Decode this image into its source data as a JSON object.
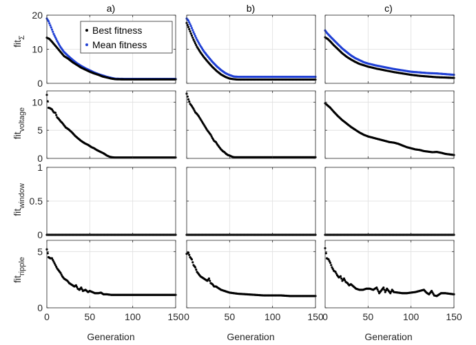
{
  "chart_data": {
    "type": "scatter",
    "layout": "4x3 grid",
    "columns": [
      "a)",
      "b)",
      "c)"
    ],
    "xlabel": "Generation",
    "xlim": [
      0,
      150
    ],
    "xticks": [
      0,
      50,
      100,
      150
    ],
    "grid": true,
    "legend": {
      "position": "top-right",
      "entries": [
        {
          "label": "Best fitness",
          "color": "#000000"
        },
        {
          "label": "Mean fitness",
          "color": "#1f3fd4"
        }
      ]
    },
    "rows": [
      {
        "ylabel_base": "fit",
        "ylabel_sub": "Σ",
        "ylim": [
          0,
          20
        ],
        "yticks": [
          0,
          10,
          20
        ],
        "ytick_labels": [
          "0",
          "10",
          "20"
        ]
      },
      {
        "ylabel_base": "fit",
        "ylabel_sub": "voltage",
        "ylim": [
          0,
          12
        ],
        "yticks": [
          0,
          5,
          10
        ],
        "ytick_labels": [
          "0",
          "5",
          "10"
        ]
      },
      {
        "ylabel_base": "fit",
        "ylabel_sub": "window",
        "ylim": [
          0,
          1
        ],
        "yticks": [
          0,
          0.5,
          1
        ],
        "ytick_labels": [
          "0",
          "0.5",
          "1"
        ]
      },
      {
        "ylabel_base": "fit",
        "ylabel_sub": "ripple",
        "ylim": [
          0,
          6
        ],
        "yticks": [
          0,
          5
        ],
        "ytick_labels": [
          "0",
          "5"
        ]
      }
    ],
    "xtick_labels": [
      [
        "0",
        "50",
        "100",
        "150"
      ],
      [
        "0",
        "50",
        "100",
        "150"
      ],
      [
        "0",
        "50",
        "100",
        "150"
      ]
    ],
    "series": [
      [
        {
          "name": "Best fitness",
          "x": [
            0,
            3,
            6,
            10,
            15,
            20,
            25,
            30,
            35,
            40,
            45,
            50,
            55,
            60,
            65,
            70,
            75,
            80,
            90,
            100,
            110,
            120,
            130,
            140,
            150
          ],
          "y": [
            13.4,
            13,
            12.2,
            11,
            9.5,
            8,
            7.2,
            6.2,
            5.4,
            4.6,
            4,
            3.4,
            2.9,
            2.5,
            2,
            1.7,
            1.4,
            1.2,
            1.15,
            1.15,
            1.15,
            1.15,
            1.15,
            1.15,
            1.15
          ]
        },
        {
          "name": "Mean fitness",
          "x": [
            0,
            2,
            5,
            8,
            12,
            16,
            20,
            25,
            30,
            35,
            40,
            45,
            50,
            55,
            60,
            65,
            70,
            75,
            80,
            90,
            100,
            110,
            120,
            130,
            140,
            150
          ],
          "y": [
            19,
            18.2,
            16.4,
            14.5,
            12.4,
            10.6,
            9.2,
            8,
            6.9,
            5.9,
            5.1,
            4.4,
            3.8,
            3.2,
            2.7,
            2.3,
            1.9,
            1.6,
            1.35,
            1.3,
            1.3,
            1.3,
            1.3,
            1.3,
            1.3,
            1.3
          ]
        },
        {
          "name": "",
          "x": [
            0,
            2,
            4,
            6,
            8,
            10,
            12,
            14,
            16,
            18,
            20,
            22,
            25,
            28,
            30,
            33,
            36,
            40,
            44,
            48,
            52,
            55,
            58,
            62,
            66,
            70,
            73,
            76,
            79,
            82,
            90,
            100,
            110,
            120,
            130,
            140,
            150
          ],
          "y": [
            11.3,
            9,
            8.9,
            8.7,
            8.2,
            8.1,
            7.3,
            7,
            6.6,
            6.3,
            5.9,
            5.5,
            5.2,
            4.8,
            4.5,
            4,
            3.6,
            3.1,
            2.7,
            2.4,
            2,
            1.8,
            1.5,
            1.2,
            0.9,
            0.5,
            0.3,
            0.2,
            0.15,
            0.15,
            0.15,
            0.15,
            0.15,
            0.15,
            0.15,
            0.15,
            0.15
          ]
        },
        {
          "name": "",
          "x": [
            0,
            150
          ],
          "y": [
            0,
            0
          ]
        },
        {
          "name": "",
          "x": [
            0,
            2,
            4,
            6,
            8,
            10,
            12,
            14,
            16,
            18,
            20,
            22,
            24,
            26,
            28,
            30,
            32,
            34,
            36,
            38,
            40,
            42,
            45,
            48,
            50,
            53,
            56,
            60,
            63,
            66,
            70,
            75,
            80,
            90,
            100,
            110,
            120,
            130,
            140,
            150
          ],
          "y": [
            5.2,
            4.5,
            4.4,
            4.4,
            4.1,
            3.8,
            3.5,
            3.3,
            3.1,
            2.8,
            2.6,
            2.5,
            2.4,
            2.2,
            2.1,
            2,
            1.9,
            2,
            1.7,
            1.6,
            1.8,
            1.5,
            1.6,
            1.4,
            1.5,
            1.4,
            1.3,
            1.3,
            1.35,
            1.2,
            1.2,
            1.15,
            1.15,
            1.15,
            1.15,
            1.15,
            1.15,
            1.15,
            1.15,
            1.15
          ]
        }
      ],
      [
        {
          "name": "Best fitness",
          "x": [
            0,
            2,
            5,
            8,
            12,
            16,
            20,
            25,
            30,
            35,
            40,
            45,
            50,
            55,
            60,
            70,
            80,
            90,
            100,
            110,
            120,
            130,
            140,
            150
          ],
          "y": [
            17.7,
            16.5,
            14.6,
            12.8,
            10.7,
            9.1,
            7.7,
            6.2,
            4.8,
            3.6,
            2.6,
            1.9,
            1.4,
            1.2,
            1.1,
            1.1,
            1.1,
            1.1,
            1.1,
            1.1,
            1.1,
            1.1,
            1.1,
            1.1
          ]
        },
        {
          "name": "Mean fitness",
          "x": [
            0,
            2,
            5,
            8,
            12,
            16,
            20,
            25,
            30,
            35,
            40,
            45,
            50,
            55,
            60,
            70,
            80,
            90,
            100,
            110,
            120,
            130,
            140,
            150
          ],
          "y": [
            19,
            18.4,
            16.8,
            15,
            12.8,
            11,
            9.4,
            7.8,
            6.3,
            5,
            3.9,
            3,
            2.4,
            2,
            1.9,
            1.9,
            1.9,
            1.9,
            1.9,
            1.9,
            1.9,
            1.9,
            1.9,
            1.9
          ]
        },
        {
          "name": "",
          "x": [
            0,
            2,
            4,
            6,
            8,
            10,
            12,
            14,
            16,
            18,
            20,
            22,
            24,
            26,
            28,
            30,
            32,
            34,
            36,
            38,
            40,
            42,
            44,
            46,
            48,
            50,
            52,
            54,
            56,
            60,
            70,
            80,
            90,
            100,
            110,
            120,
            130,
            140,
            150
          ],
          "y": [
            11.5,
            10.5,
            9.7,
            9.3,
            8.8,
            8.2,
            7.9,
            7.5,
            7,
            6.5,
            6,
            5.5,
            5,
            4.6,
            4.2,
            3.6,
            3.1,
            2.9,
            2.4,
            2,
            1.6,
            1.3,
            1.1,
            0.8,
            0.6,
            0.5,
            0.35,
            0.25,
            0.2,
            0.2,
            0.2,
            0.2,
            0.2,
            0.2,
            0.2,
            0.2,
            0.2,
            0.2,
            0.2
          ]
        },
        {
          "name": "",
          "x": [
            0,
            150
          ],
          "y": [
            0,
            0
          ]
        },
        {
          "name": "",
          "x": [
            0,
            2,
            4,
            6,
            8,
            10,
            12,
            14,
            16,
            18,
            20,
            22,
            24,
            26,
            28,
            30,
            32,
            34,
            36,
            38,
            40,
            42,
            44,
            46,
            48,
            50,
            55,
            60,
            70,
            80,
            90,
            100,
            110,
            120,
            130,
            140,
            150
          ],
          "y": [
            4.8,
            4.9,
            4.5,
            4.3,
            3.8,
            3.6,
            3.2,
            3,
            2.8,
            2.7,
            2.6,
            2.5,
            2.4,
            2.6,
            2.2,
            2.1,
            1.9,
            1.9,
            1.8,
            1.7,
            1.6,
            1.55,
            1.5,
            1.45,
            1.4,
            1.35,
            1.3,
            1.25,
            1.2,
            1.15,
            1.1,
            1.1,
            1.1,
            1.05,
            1.05,
            1.05,
            1.05
          ]
        }
      ],
      [
        {
          "name": "Best fitness",
          "x": [
            0,
            3,
            6,
            10,
            15,
            20,
            25,
            30,
            35,
            40,
            45,
            50,
            55,
            60,
            70,
            80,
            90,
            100,
            110,
            120,
            130,
            140,
            150
          ],
          "y": [
            13.5,
            13,
            12.3,
            11.2,
            10,
            8.8,
            7.8,
            7,
            6.3,
            5.7,
            5.3,
            4.9,
            4.6,
            4.3,
            3.8,
            3.3,
            2.9,
            2.5,
            2.2,
            2,
            1.8,
            1.7,
            1.6
          ]
        },
        {
          "name": "Mean fitness",
          "x": [
            0,
            2,
            5,
            8,
            12,
            16,
            20,
            25,
            30,
            35,
            40,
            45,
            50,
            55,
            60,
            70,
            80,
            90,
            100,
            110,
            120,
            130,
            140,
            150
          ],
          "y": [
            15.5,
            14.8,
            14,
            13.2,
            12.2,
            11.2,
            10.2,
            9.2,
            8.2,
            7.4,
            6.8,
            6.2,
            5.8,
            5.5,
            5.2,
            4.7,
            4.2,
            3.8,
            3.4,
            3.2,
            3,
            2.9,
            2.7,
            2.5
          ]
        },
        {
          "name": "",
          "x": [
            0,
            3,
            6,
            10,
            15,
            20,
            25,
            30,
            35,
            40,
            45,
            50,
            55,
            60,
            65,
            70,
            75,
            80,
            85,
            90,
            95,
            100,
            105,
            110,
            115,
            120,
            125,
            130,
            135,
            140,
            145,
            150
          ],
          "y": [
            9.8,
            9.4,
            9,
            8.3,
            7.5,
            6.8,
            6.2,
            5.6,
            5.1,
            4.6,
            4.2,
            3.9,
            3.7,
            3.5,
            3.3,
            3.1,
            2.9,
            2.8,
            2.6,
            2.3,
            2,
            1.8,
            1.6,
            1.5,
            1.3,
            1.2,
            1.1,
            1.15,
            1,
            0.8,
            0.7,
            0.6
          ]
        },
        {
          "name": "",
          "x": [
            0,
            150
          ],
          "y": [
            0,
            0
          ]
        },
        {
          "name": "",
          "x": [
            0,
            2,
            4,
            6,
            8,
            10,
            12,
            14,
            16,
            18,
            20,
            22,
            24,
            26,
            28,
            30,
            33,
            36,
            40,
            44,
            48,
            52,
            56,
            60,
            63,
            66,
            68,
            70,
            72,
            74,
            76,
            78,
            80,
            85,
            90,
            95,
            100,
            105,
            110,
            115,
            118,
            121,
            124,
            127,
            130,
            135,
            140,
            145,
            150
          ],
          "y": [
            5.3,
            4.4,
            4.3,
            4,
            3.6,
            3.3,
            3.2,
            2.9,
            2.7,
            2.8,
            2.4,
            2.6,
            2.3,
            2.2,
            2,
            2.1,
            1.9,
            1.7,
            1.6,
            1.6,
            1.7,
            1.7,
            1.6,
            1.8,
            1.3,
            1.6,
            1.8,
            1.4,
            1.7,
            1.5,
            1.3,
            1.6,
            1.4,
            1.35,
            1.3,
            1.3,
            1.35,
            1.4,
            1.5,
            1.6,
            1.35,
            1.2,
            1.5,
            1.1,
            1.05,
            1.3,
            1.3,
            1.25,
            1.2
          ]
        }
      ]
    ]
  }
}
